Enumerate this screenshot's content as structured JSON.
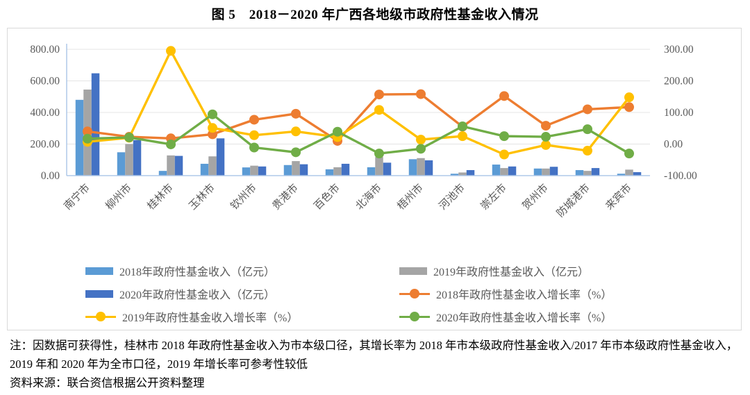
{
  "title": "图 5　2018－2020 年广西各地级市政府性基金收入情况",
  "colors": {
    "bar_2018": "#5B9BD5",
    "bar_2019": "#A5A5A5",
    "bar_2020": "#4472C4",
    "line_2018": "#ED7D31",
    "line_2019": "#FFC000",
    "line_2020": "#70AD47",
    "grid": "#E4E4E4",
    "axis_line": "#AFC8E8",
    "axis_text": "#595959",
    "border": "#D9D9D9"
  },
  "chart_data": {
    "type": "bar+line combo, bars on left axis (亿元), lines on right axis (%)",
    "categories": [
      "南宁市",
      "柳州市",
      "桂林市",
      "玉林市",
      "钦州市",
      "贵港市",
      "百色市",
      "北海市",
      "梧州市",
      "河池市",
      "崇左市",
      "贺州市",
      "防城港市",
      "来宾市"
    ],
    "bar_series": [
      {
        "name": "2018年政府性基金收入（亿元）",
        "color": "bar_2018",
        "values": [
          480,
          148,
          30,
          75,
          52,
          67,
          40,
          53,
          104,
          12,
          70,
          45,
          35,
          12
        ]
      },
      {
        "name": "2019年政府性基金收入（亿元）",
        "color": "bar_2019",
        "values": [
          545,
          200,
          128,
          122,
          63,
          92,
          53,
          118,
          111,
          20,
          48,
          45,
          30,
          38
        ]
      },
      {
        "name": "2020年政府性基金收入（亿元）",
        "color": "bar_2020",
        "values": [
          648,
          225,
          125,
          236,
          58,
          72,
          75,
          82,
          97,
          35,
          58,
          56,
          48,
          22
        ]
      }
    ],
    "line_series": [
      {
        "name": "2018年政府性基金收入增长率（%）",
        "color": "line_2018",
        "values": [
          40,
          23,
          18,
          31,
          77,
          96,
          10,
          157,
          158,
          55,
          152,
          58,
          110,
          117
        ]
      },
      {
        "name": "2019年政府性基金收入增长率（%）",
        "color": "line_2019",
        "values": [
          7,
          20,
          295,
          51,
          28,
          40,
          22,
          108,
          14,
          25,
          -33,
          -3,
          -21,
          148
        ]
      },
      {
        "name": "2020年政府性基金收入增长率（%）",
        "color": "line_2020",
        "values": [
          17,
          21,
          -1,
          94,
          -11,
          -26,
          39,
          -30,
          -15,
          56,
          25,
          23,
          47,
          -30
        ]
      }
    ],
    "left_axis": {
      "min": 0,
      "max": 800,
      "tick_labels": [
        "800.00",
        "600.00",
        "400.00",
        "200.00",
        "0.00"
      ]
    },
    "right_axis": {
      "min": -100,
      "max": 300,
      "tick_labels": [
        "300.00",
        "200.00",
        "100.00",
        "0.00",
        "-100.00"
      ]
    },
    "grid": true,
    "legend_position": "bottom"
  },
  "legend": {
    "items": [
      {
        "swatch": "bar",
        "color": "bar_2018",
        "label": "2018年政府性基金收入（亿元）"
      },
      {
        "swatch": "bar",
        "color": "bar_2019",
        "label": "2019年政府性基金收入（亿元）"
      },
      {
        "swatch": "bar",
        "color": "bar_2020",
        "label": "2020年政府性基金收入（亿元）"
      },
      {
        "swatch": "line",
        "color": "line_2018",
        "label": "2018年政府性基金收入增长率（%）"
      },
      {
        "swatch": "line",
        "color": "line_2019",
        "label": "2019年政府性基金收入增长率（%）"
      },
      {
        "swatch": "line",
        "color": "line_2020",
        "label": "2020年政府性基金收入增长率（%）"
      }
    ]
  },
  "notes": {
    "note": "注：因数据可获得性，桂林市 2018 年政府性基金收入为市本级口径，其增长率为 2018 年市本级政府性基金收入/2017 年市本级政府性基金收入，2019 年和 2020 年为全市口径，2019 年增长率可参考性较低",
    "source": "资料来源：联合资信根据公开资料整理"
  }
}
